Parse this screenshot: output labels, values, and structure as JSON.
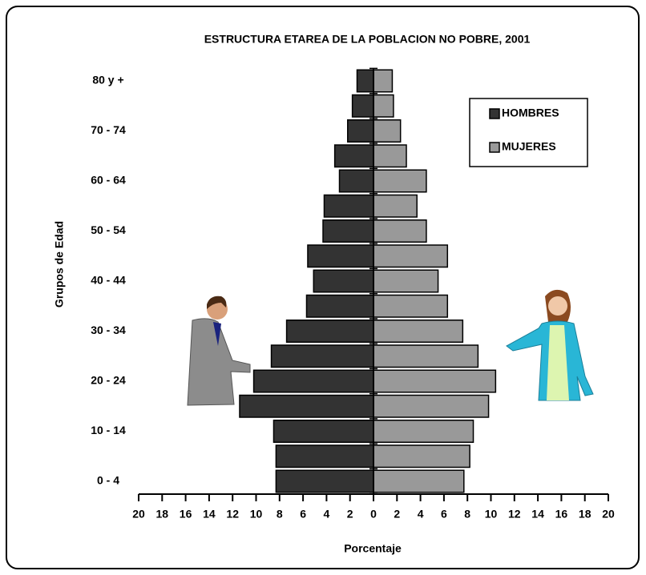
{
  "chart_data": {
    "type": "pyramid",
    "title": "ESTRUCTURA  ETAREA  DE  LA POBLACION NO POBRE, 2001",
    "x_label": "Porcentaje",
    "y_label": "Grupos de Edad",
    "categories": [
      "0 - 4",
      null,
      "10 - 14",
      null,
      "20 - 24",
      null,
      "30 - 34",
      null,
      "40 - 44",
      null,
      "50 - 54",
      null,
      "60 - 64",
      null,
      "70 - 74",
      null,
      "80 y +"
    ],
    "series": [
      {
        "name": "HOMBRES",
        "color": "#333333",
        "values": [
          -8.3,
          -8.3,
          -8.5,
          -11.4,
          -10.2,
          -8.7,
          -7.4,
          -5.7,
          -5.1,
          -5.6,
          -4.3,
          -4.2,
          -2.9,
          -3.3,
          -2.2,
          -1.8,
          -1.4
        ]
      },
      {
        "name": "MUJERES",
        "color": "#999999",
        "values": [
          7.7,
          8.2,
          8.5,
          9.8,
          10.4,
          8.9,
          7.6,
          6.3,
          5.5,
          6.3,
          4.5,
          3.7,
          4.5,
          2.8,
          2.3,
          1.7,
          1.6
        ]
      }
    ],
    "xlim": [
      -20,
      20
    ],
    "xticks": [
      {
        "value": -20,
        "label": "20"
      },
      {
        "value": -18,
        "label": "18"
      },
      {
        "value": -16,
        "label": "16"
      },
      {
        "value": -14,
        "label": "14"
      },
      {
        "value": -12,
        "label": "12"
      },
      {
        "value": -10,
        "label": "10"
      },
      {
        "value": -8,
        "label": "8"
      },
      {
        "value": -6,
        "label": "6"
      },
      {
        "value": -4,
        "label": "4"
      },
      {
        "value": -2,
        "label": "2"
      },
      0,
      2,
      4,
      6,
      8,
      10,
      12,
      14,
      16,
      18,
      20
    ],
    "legend_position": "upper right"
  }
}
